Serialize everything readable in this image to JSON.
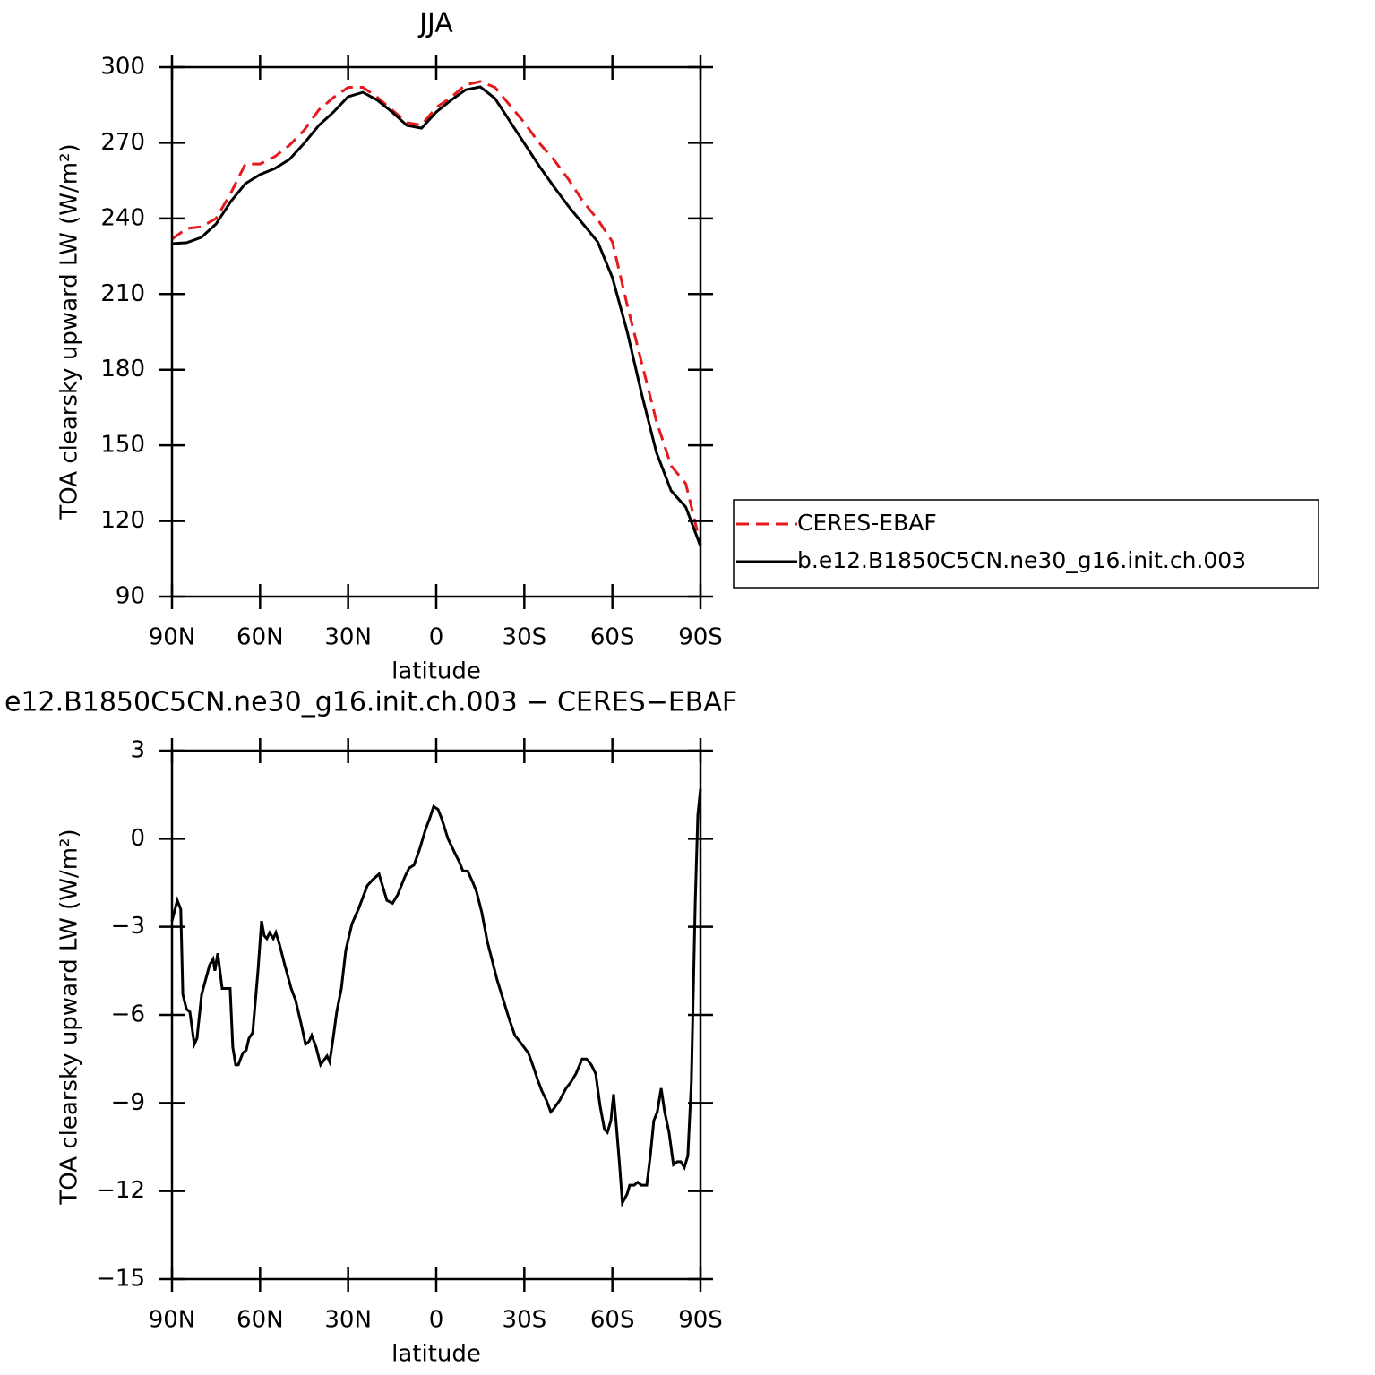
{
  "chart_data": [
    {
      "type": "line",
      "title": "JJA",
      "xlabel": "latitude",
      "ylabel": "TOA clearsky upward LW (W/m²)",
      "xlim": [
        90,
        -90
      ],
      "xticks": [
        {
          "value": 90,
          "label": "90N"
        },
        {
          "value": 60,
          "label": "60N"
        },
        {
          "value": 30,
          "label": "30N"
        },
        0,
        {
          "value": -30,
          "label": "30S"
        },
        {
          "value": -60,
          "label": "60S"
        },
        {
          "value": -90,
          "label": "90S"
        }
      ],
      "ylim": [
        90,
        300
      ],
      "yticks": [
        90,
        120,
        150,
        180,
        210,
        240,
        270,
        300
      ],
      "legend": "right",
      "x": [
        90,
        85,
        80,
        75,
        70,
        65,
        60,
        55,
        50,
        45,
        40,
        35,
        30,
        25,
        20,
        15,
        10,
        5,
        0,
        -5,
        -10,
        -15,
        -20,
        -25,
        -30,
        -35,
        -40,
        -45,
        -50,
        -55,
        -60,
        -65,
        -70,
        -75,
        -80,
        -85,
        -90
      ],
      "series": [
        {
          "name": "CERES-EBAF",
          "color": "#e41a1c",
          "dash": "dashed",
          "values": [
            231.8,
            236,
            236.7,
            240,
            250,
            261.6,
            261.6,
            264.5,
            269,
            275,
            283,
            288,
            292,
            292,
            288,
            283,
            278,
            277,
            284,
            288,
            293,
            294.3,
            292,
            285,
            278,
            270,
            263.4,
            255.6,
            246.7,
            239.6,
            230.7,
            205.8,
            182.7,
            159.6,
            141.9,
            134.8,
            110.6
          ]
        },
        {
          "name": "b.e12.B1850C5CN.ne30_g16.init.ch.003",
          "color": "#000000",
          "dash": "solid",
          "values": [
            230,
            230.4,
            232.5,
            237.8,
            246.7,
            253.8,
            257.4,
            259.8,
            263.4,
            269.8,
            276.9,
            282.2,
            288.3,
            290,
            286.9,
            282.2,
            276.9,
            275.8,
            282.2,
            286.9,
            291,
            292.2,
            287.6,
            278.7,
            269.8,
            260.9,
            252.7,
            244.9,
            237.8,
            230.7,
            216.5,
            195.2,
            170.3,
            147.2,
            132,
            125.5,
            110
          ]
        }
      ]
    },
    {
      "type": "line",
      "title": "e12.B1850C5CN.ne30_g16.init.ch.003 − CERES−EBAF",
      "xlabel": "latitude",
      "ylabel": "TOA clearsky upward LW (W/m²)",
      "xlim": [
        90,
        -90
      ],
      "xticks": [
        {
          "value": 90,
          "label": "90N"
        },
        {
          "value": 60,
          "label": "60N"
        },
        {
          "value": 30,
          "label": "30N"
        },
        0,
        {
          "value": -30,
          "label": "30S"
        },
        {
          "value": -60,
          "label": "60S"
        },
        {
          "value": -90,
          "label": "90S"
        }
      ],
      "ylim": [
        -15,
        3
      ],
      "yticks": [
        {
          "value": -15,
          "label": "−15"
        },
        {
          "value": -12,
          "label": "−12"
        },
        {
          "value": -9,
          "label": "−9"
        },
        {
          "value": -6,
          "label": "−6"
        },
        {
          "value": -3,
          "label": "−3"
        },
        0,
        3
      ],
      "color": "#000000",
      "x": [
        90,
        88.2,
        87,
        86.3,
        85.1,
        83.9,
        82.4,
        81.5,
        79.9,
        77.2,
        76,
        75.4,
        74.4,
        72.9,
        70.2,
        69.3,
        68.3,
        67.4,
        65.9,
        64.7,
        63.8,
        62.5,
        60.7,
        59.5,
        58.6,
        57.7,
        56.7,
        55.5,
        54.6,
        53.4,
        51.6,
        49.4,
        47.9,
        45.8,
        44.5,
        43.3,
        42.4,
        40.9,
        39.4,
        37.2,
        36.3,
        35.1,
        33.9,
        32.3,
        30.8,
        28.7,
        26.5,
        23.5,
        21.7,
        19.5,
        16.8,
        14.9,
        13.1,
        10.7,
        9.2,
        7.6,
        5.8,
        3.7,
        2.2,
        0.9,
        -0.6,
        -1.8,
        -4,
        -6.4,
        -7.9,
        -9.1,
        -10.7,
        -12.5,
        -13.7,
        -15.5,
        -17.4,
        -19.2,
        -20.7,
        -23.2,
        -24.7,
        -26.8,
        -28.4,
        -29.9,
        -31.4,
        -33.2,
        -34.5,
        -36,
        -37.5,
        -39,
        -40,
        -42.1,
        -44.2,
        -45.8,
        -47.6,
        -49.7,
        -51.2,
        -52.8,
        -54.3,
        -55.8,
        -57.3,
        -58.3,
        -59.5,
        -60.4,
        -61.3,
        -62.5,
        -63.4,
        -65,
        -65.9,
        -67.4,
        -68.6,
        -69.9,
        -71.7,
        -72.9,
        -74.1,
        -75.3,
        -76.6,
        -77.8,
        -79.3,
        -80.8,
        -82.1,
        -83.3,
        -84.5,
        -85.7,
        -86.9,
        -88.2,
        -89.1,
        -90
      ],
      "values": [
        -2.8,
        -2.1,
        -2.4,
        -5.3,
        -5.8,
        -5.9,
        -7,
        -6.8,
        -5.3,
        -4.3,
        -4.1,
        -4.5,
        -3.9,
        -5.1,
        -5.1,
        -7.1,
        -7.7,
        -7.7,
        -7.3,
        -7.2,
        -6.8,
        -6.6,
        -4.5,
        -2.8,
        -3.3,
        -3.4,
        -3.2,
        -3.4,
        -3.2,
        -3.6,
        -4.3,
        -5.1,
        -5.5,
        -6.4,
        -7,
        -6.9,
        -6.7,
        -7.1,
        -7.7,
        -7.4,
        -7.6,
        -6.8,
        -5.9,
        -5.1,
        -3.8,
        -2.9,
        -2.4,
        -1.6,
        -1.4,
        -1.2,
        -2.1,
        -2.2,
        -1.9,
        -1.3,
        -1,
        -0.9,
        -0.4,
        0.3,
        0.7,
        1.1,
        1,
        0.7,
        0,
        -0.5,
        -0.8,
        -1.1,
        -1.1,
        -1.5,
        -1.8,
        -2.5,
        -3.5,
        -4.2,
        -4.8,
        -5.6,
        -6.1,
        -6.7,
        -6.9,
        -7.1,
        -7.3,
        -7.8,
        -8.2,
        -8.6,
        -8.9,
        -9.3,
        -9.2,
        -8.9,
        -8.5,
        -8.3,
        -8,
        -7.5,
        -7.5,
        -7.7,
        -8,
        -9.1,
        -9.9,
        -10,
        -9.6,
        -8.7,
        -9.7,
        -11.2,
        -12.4,
        -12.1,
        -11.8,
        -11.8,
        -11.7,
        -11.8,
        -11.8,
        -10.8,
        -9.6,
        -9.3,
        -8.5,
        -9.3,
        -10,
        -11.1,
        -11,
        -11,
        -11.2,
        -10.8,
        -8.3,
        -2.2,
        0.8,
        1.7
      ]
    }
  ]
}
